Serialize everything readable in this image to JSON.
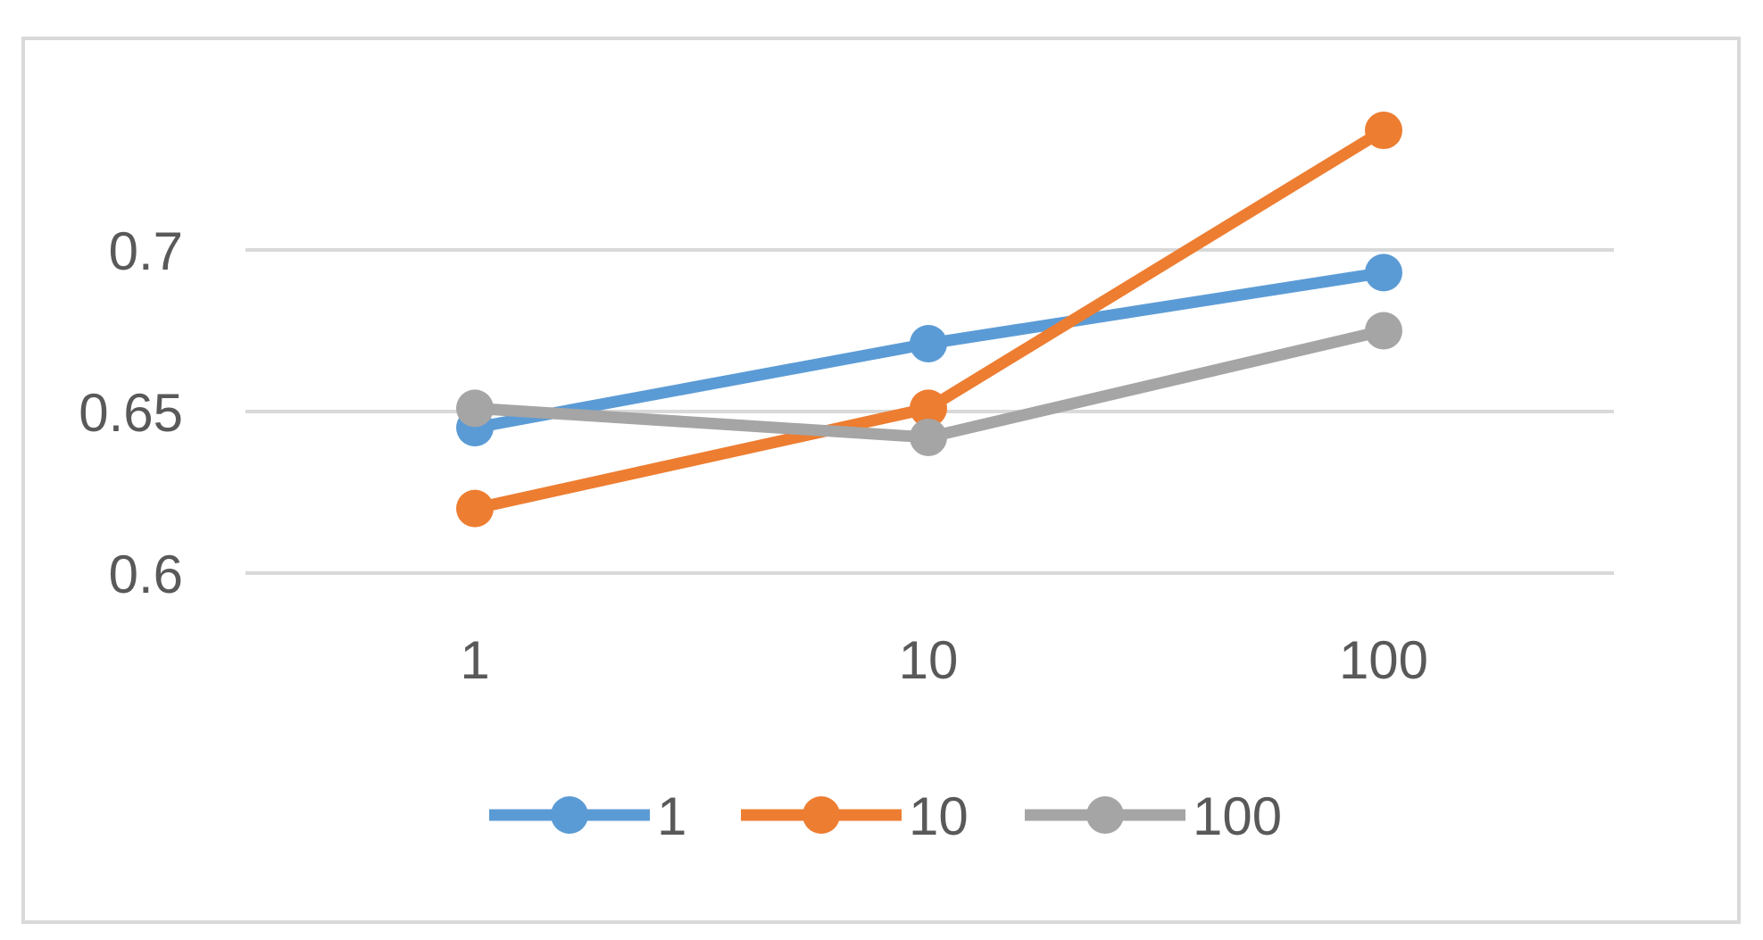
{
  "chart_data": {
    "type": "line",
    "title": "",
    "xlabel": "",
    "ylabel": "",
    "categories": [
      "1",
      "10",
      "100"
    ],
    "ylim": [
      0.6,
      0.75
    ],
    "yticks": [
      "0.6",
      "0.65",
      "0.7"
    ],
    "ytick_values": [
      0.6,
      0.65,
      0.7
    ],
    "grid": true,
    "legend_position": "bottom",
    "series": [
      {
        "name": "1",
        "color": "#5b9bd5",
        "values": [
          0.645,
          0.671,
          0.693
        ]
      },
      {
        "name": "10",
        "color": "#ed7d31",
        "values": [
          0.62,
          0.651,
          0.737
        ]
      },
      {
        "name": "100",
        "color": "#a5a5a5",
        "values": [
          0.651,
          0.642,
          0.675
        ]
      }
    ]
  }
}
